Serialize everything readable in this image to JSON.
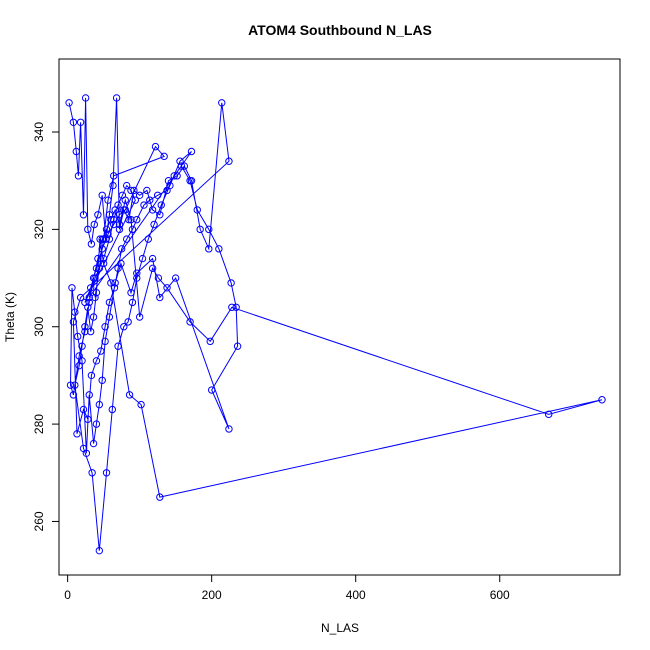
{
  "chart_data": {
    "type": "line",
    "title": "ATOM4 Southbound N_LAS",
    "xlabel": "N_LAS",
    "ylabel": "Theta (K)",
    "xlim": [
      -12,
      767
    ],
    "ylim": [
      249,
      355
    ],
    "x_ticks": [
      0,
      200,
      400,
      600
    ],
    "y_ticks": [
      260,
      280,
      300,
      320,
      340
    ],
    "grid": false,
    "legend": "none",
    "series_color": "#0000ff",
    "marker": "open-circle",
    "x": [
      2,
      8,
      12,
      15,
      18,
      22,
      25,
      28,
      33,
      37,
      42,
      48,
      53,
      58,
      63,
      68,
      72,
      78,
      85,
      92,
      100,
      110,
      118,
      128,
      140,
      152,
      162,
      172,
      184,
      196,
      214,
      224,
      18,
      8,
      13,
      22,
      28,
      33,
      40,
      46,
      52,
      58,
      65,
      70,
      75,
      82,
      90,
      96,
      106,
      114,
      125,
      138,
      148,
      158,
      170,
      180,
      196,
      210,
      227,
      234,
      236,
      200,
      224,
      150,
      128,
      118,
      96,
      88,
      74,
      66,
      58,
      52,
      48,
      44,
      40,
      36,
      30,
      26,
      20,
      14,
      10,
      6,
      4,
      8,
      16,
      24,
      30,
      36,
      42,
      48,
      54,
      60,
      66,
      72,
      80,
      88,
      100,
      118,
      126,
      138,
      170,
      198,
      228,
      668,
      742,
      128,
      102,
      86,
      60,
      50,
      45,
      40,
      36,
      32,
      28,
      24,
      20,
      16,
      10,
      22,
      34,
      44,
      54,
      62,
      70,
      78,
      84,
      90,
      96,
      104,
      112,
      120,
      130,
      142,
      156,
      172,
      30,
      38,
      50,
      58,
      64,
      70,
      76,
      82,
      88,
      94,
      24,
      32,
      40,
      48,
      56,
      64,
      72,
      80,
      122,
      134,
      64,
      56,
      50,
      44,
      38
    ],
    "y": [
      346,
      342,
      336,
      331,
      342,
      323,
      347,
      320,
      317,
      321,
      323,
      327,
      318,
      323,
      329,
      347,
      320,
      324,
      322,
      328,
      327,
      328,
      324,
      323,
      330,
      331,
      333,
      330,
      320,
      316,
      346,
      334,
      306,
      301,
      278,
      283,
      281,
      290,
      293,
      295,
      300,
      305,
      308,
      312,
      316,
      318,
      320,
      322,
      325,
      326,
      327,
      328,
      331,
      333,
      330,
      324,
      320,
      316,
      309,
      304,
      296,
      287,
      279,
      310,
      306,
      314,
      311,
      307,
      313,
      309,
      302,
      297,
      289,
      284,
      280,
      276,
      286,
      274,
      293,
      298,
      303,
      308,
      288,
      286,
      294,
      299,
      305,
      310,
      314,
      318,
      320,
      322,
      324,
      321,
      326,
      322,
      302,
      312,
      310,
      308,
      301,
      297,
      304,
      282,
      285,
      265,
      284,
      286,
      309,
      313,
      318,
      307,
      302,
      299,
      304,
      300,
      296,
      292,
      288,
      275,
      270,
      254,
      270,
      283,
      296,
      300,
      301,
      305,
      310,
      314,
      318,
      321,
      325,
      329,
      334,
      336,
      306,
      310,
      314,
      318,
      322,
      325,
      327,
      329,
      328,
      326,
      305,
      308,
      312,
      316,
      319,
      321,
      323,
      324,
      337,
      335,
      331,
      326,
      318,
      312,
      306
    ]
  }
}
